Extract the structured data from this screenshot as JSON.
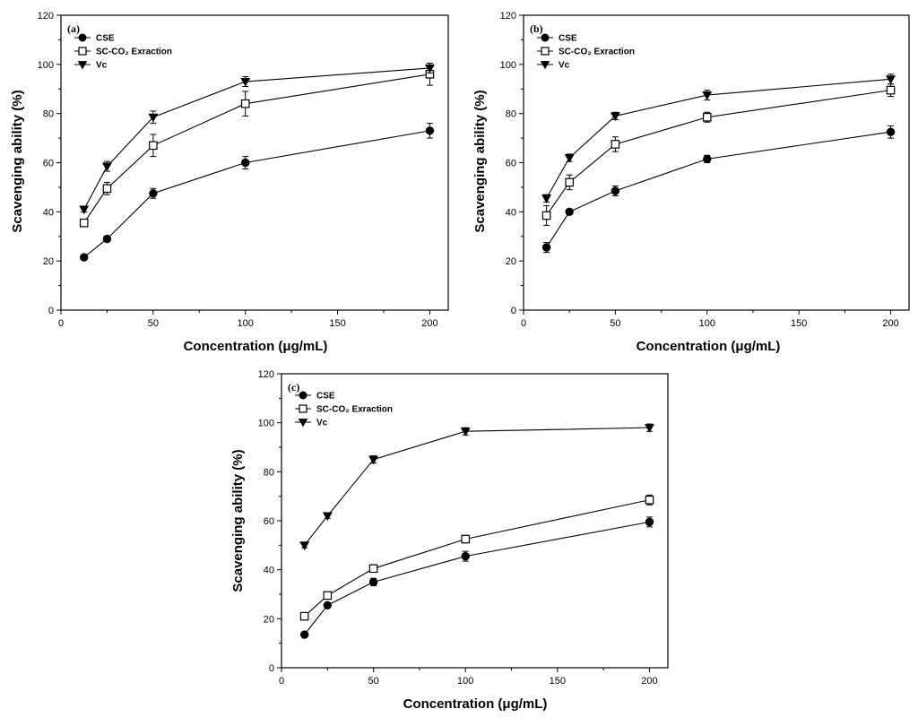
{
  "chart_data": [
    {
      "type": "line",
      "panel_label": "(a)",
      "xlabel": "Concentration (μg/mL)",
      "ylabel": "Scavenging ability (%)",
      "xlim": [
        0,
        210
      ],
      "ylim": [
        0,
        120
      ],
      "xticks": [
        0,
        50,
        100,
        150,
        200
      ],
      "yticks": [
        0,
        20,
        40,
        60,
        80,
        100,
        120
      ],
      "x": [
        12.5,
        25,
        50,
        100,
        200
      ],
      "legend_position": "top-left",
      "series": [
        {
          "name": "CSE",
          "marker": "circle-filled",
          "values": [
            21.5,
            29,
            47.5,
            60,
            73
          ],
          "errors": [
            1,
            1,
            2,
            2.5,
            3
          ]
        },
        {
          "name": "SC-CO₂ Exraction",
          "marker": "square-open",
          "values": [
            35.5,
            49.5,
            67,
            84,
            96
          ],
          "errors": [
            1.5,
            2.5,
            4.5,
            5,
            4.5
          ]
        },
        {
          "name": "Vc",
          "marker": "triangle-down-filled",
          "values": [
            41,
            58.5,
            78.5,
            93,
            98.5
          ],
          "errors": [
            1,
            2,
            2.5,
            2,
            2
          ]
        }
      ]
    },
    {
      "type": "line",
      "panel_label": "(b)",
      "xlabel": "Concentration (μg/mL)",
      "ylabel": "Scavenging ability (%)",
      "xlim": [
        0,
        210
      ],
      "ylim": [
        0,
        120
      ],
      "xticks": [
        0,
        50,
        100,
        150,
        200
      ],
      "yticks": [
        0,
        20,
        40,
        60,
        80,
        100,
        120
      ],
      "x": [
        12.5,
        25,
        50,
        100,
        200
      ],
      "legend_position": "top-left",
      "series": [
        {
          "name": "CSE",
          "marker": "circle-filled",
          "values": [
            25.5,
            40,
            48.5,
            61.5,
            72.5
          ],
          "errors": [
            2,
            1,
            2,
            1.5,
            2.5
          ]
        },
        {
          "name": "SC-CO₂ Exraction",
          "marker": "square-open",
          "values": [
            38.5,
            52,
            67.5,
            78.5,
            89.5
          ],
          "errors": [
            4,
            3,
            3,
            2,
            2.5
          ]
        },
        {
          "name": "Vc",
          "marker": "triangle-down-filled",
          "values": [
            45.5,
            62,
            79,
            87.5,
            94
          ],
          "errors": [
            1.5,
            1.5,
            1.5,
            2,
            2
          ]
        }
      ]
    },
    {
      "type": "line",
      "panel_label": "(c)",
      "xlabel": "Concentration (μg/mL)",
      "ylabel": "Scavenging ability (%)",
      "xlim": [
        0,
        210
      ],
      "ylim": [
        0,
        120
      ],
      "xticks": [
        0,
        50,
        100,
        150,
        200
      ],
      "yticks": [
        0,
        20,
        40,
        60,
        80,
        100,
        120
      ],
      "x": [
        12.5,
        25,
        50,
        100,
        200
      ],
      "legend_position": "top-left",
      "series": [
        {
          "name": "CSE",
          "marker": "circle-filled",
          "values": [
            13.5,
            25.5,
            35,
            45.5,
            59.5
          ],
          "errors": [
            0.5,
            1,
            1.5,
            2,
            2
          ]
        },
        {
          "name": "SC-CO₂ Exraction",
          "marker": "square-open",
          "values": [
            21,
            29.5,
            40.5,
            52.5,
            68.5
          ],
          "errors": [
            0.5,
            1,
            1.5,
            1.5,
            2
          ]
        },
        {
          "name": "Vc",
          "marker": "triangle-down-filled",
          "values": [
            50,
            62,
            85,
            96.5,
            98
          ],
          "errors": [
            1,
            1,
            1.5,
            1.5,
            1.5
          ]
        }
      ]
    }
  ]
}
